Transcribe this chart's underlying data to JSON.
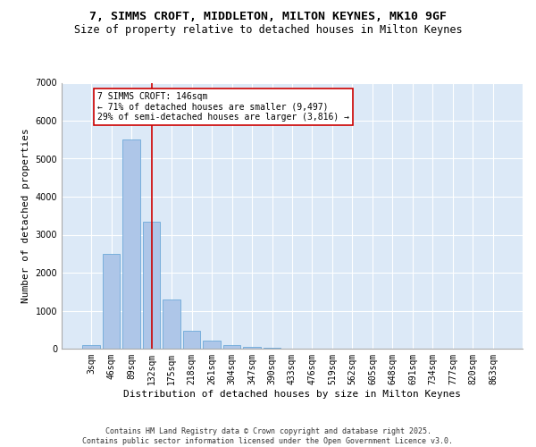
{
  "title_line1": "7, SIMMS CROFT, MIDDLETON, MILTON KEYNES, MK10 9GF",
  "title_line2": "Size of property relative to detached houses in Milton Keynes",
  "xlabel": "Distribution of detached houses by size in Milton Keynes",
  "ylabel": "Number of detached properties",
  "categories": [
    "3sqm",
    "46sqm",
    "89sqm",
    "132sqm",
    "175sqm",
    "218sqm",
    "261sqm",
    "304sqm",
    "347sqm",
    "390sqm",
    "433sqm",
    "476sqm",
    "519sqm",
    "562sqm",
    "605sqm",
    "648sqm",
    "691sqm",
    "734sqm",
    "777sqm",
    "820sqm",
    "863sqm"
  ],
  "bar_heights": [
    100,
    2500,
    5500,
    3350,
    1300,
    480,
    220,
    100,
    50,
    30,
    10,
    0,
    0,
    0,
    0,
    0,
    0,
    0,
    0,
    0,
    0
  ],
  "bar_color": "#aec6e8",
  "bar_edge_color": "#5a9fd4",
  "vline_x": 3,
  "vline_color": "#cc0000",
  "annotation_title": "7 SIMMS CROFT: 146sqm",
  "annotation_line1": "← 71% of detached houses are smaller (9,497)",
  "annotation_line2": "29% of semi-detached houses are larger (3,816) →",
  "annotation_box_color": "#cc0000",
  "ylim": [
    0,
    7000
  ],
  "yticks": [
    0,
    1000,
    2000,
    3000,
    4000,
    5000,
    6000,
    7000
  ],
  "background_color": "#dce9f7",
  "footer_line1": "Contains HM Land Registry data © Crown copyright and database right 2025.",
  "footer_line2": "Contains public sector information licensed under the Open Government Licence v3.0.",
  "title_fontsize": 9.5,
  "subtitle_fontsize": 8.5,
  "axis_label_fontsize": 8,
  "tick_fontsize": 7,
  "annotation_fontsize": 7,
  "footer_fontsize": 6
}
